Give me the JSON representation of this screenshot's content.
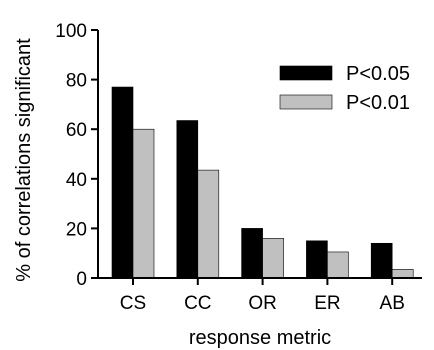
{
  "chart_data": {
    "type": "bar",
    "title": "",
    "xlabel": "response metric",
    "ylabel": "% of correlations significant",
    "categories": [
      "CS",
      "CC",
      "OR",
      "ER",
      "AB"
    ],
    "series": [
      {
        "name": "P<0.05",
        "color": "#000000",
        "values": [
          77,
          63.5,
          20,
          15,
          14
        ]
      },
      {
        "name": "P<0.01",
        "color": "#c0c0c0",
        "values": [
          60,
          43.5,
          16,
          10.5,
          3.5
        ]
      }
    ],
    "ylim": [
      0,
      100
    ],
    "yticks": [
      "0",
      "20",
      "40",
      "60",
      "80",
      "100"
    ],
    "grid": false,
    "legend": "top-right"
  }
}
